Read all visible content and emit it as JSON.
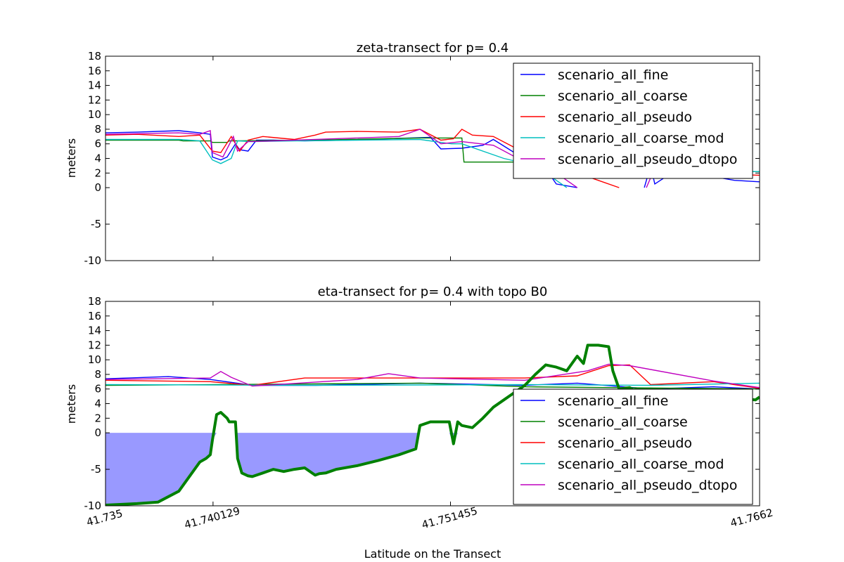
{
  "colors": {
    "scenario_all_fine": "#0000ff",
    "scenario_all_coarse": "#008000",
    "scenario_all_pseudo": "#ff0000",
    "scenario_all_coarse_mod": "#00bfbf",
    "scenario_all_pseudo_dtopo": "#bf00bf",
    "water_fill": "#9999ff",
    "topo": "#008000"
  },
  "chart_data": [
    {
      "type": "line",
      "title": "zeta-transect for p= 0.4",
      "ylabel": "meters",
      "xlim": [
        41.735,
        41.7662
      ],
      "ylim": [
        -10,
        18
      ],
      "yticks": [
        -10,
        -5,
        0,
        2,
        4,
        6,
        8,
        10,
        12,
        14,
        16,
        18
      ],
      "legend": "upper-right",
      "series": [
        {
          "name": "scenario_all_fine",
          "x": [
            41.735,
            41.7365,
            41.7385,
            41.7395,
            41.74,
            41.7401,
            41.7405,
            41.7408,
            41.7412,
            41.7414,
            41.7418,
            41.7422,
            41.743,
            41.7445,
            41.7465,
            41.7485,
            41.7505,
            41.751,
            41.752,
            41.753,
            41.7535,
            41.7545,
            41.7555,
            41.7561,
            41.7565,
            41.7575
          ],
          "y": [
            7.5,
            7.6,
            7.8,
            7.5,
            7.3,
            4.2,
            3.8,
            4.2,
            6.0,
            5.2,
            5.0,
            6.5,
            6.5,
            6.4,
            6.5,
            6.7,
            6.9,
            5.3,
            5.4,
            5.8,
            6.6,
            4.8,
            3.5,
            2.2,
            0.5,
            0.0
          ]
        },
        {
          "name": "scenario_all_fine",
          "x": [
            41.7607,
            41.761,
            41.7612,
            41.762,
            41.764,
            41.765,
            41.7662
          ],
          "y": [
            0.0,
            3.0,
            0.5,
            2.0,
            1.5,
            1.0,
            0.8
          ]
        },
        {
          "name": "scenario_all_coarse",
          "x": [
            41.735,
            41.7385,
            41.7387,
            41.74,
            41.7401,
            41.7408,
            41.7409,
            41.745,
            41.75,
            41.752,
            41.7521,
            41.7545,
            41.7546,
            41.7662
          ],
          "y": [
            6.5,
            6.5,
            6.4,
            6.4,
            6.2,
            6.2,
            6.4,
            6.5,
            6.8,
            6.8,
            3.5,
            3.5,
            2.2,
            2.2
          ]
        },
        {
          "name": "scenario_all_pseudo",
          "x": [
            41.735,
            41.7365,
            41.7385,
            41.7395,
            41.7401,
            41.7405,
            41.741,
            41.7414,
            41.7418,
            41.7425,
            41.744,
            41.745,
            41.7455,
            41.747,
            41.749,
            41.75,
            41.751,
            41.7516,
            41.752,
            41.7525,
            41.7535,
            41.7545,
            41.7555,
            41.757,
            41.7585,
            41.7595
          ],
          "y": [
            7.2,
            7.3,
            7.0,
            7.2,
            5.0,
            4.8,
            7.0,
            5.0,
            6.5,
            7.0,
            6.6,
            7.2,
            7.6,
            7.7,
            7.6,
            8.0,
            6.5,
            6.7,
            8.0,
            7.2,
            7.0,
            5.5,
            4.0,
            2.5,
            1.0,
            0.0
          ]
        },
        {
          "name": "scenario_all_pseudo",
          "x": [
            41.761,
            41.762,
            41.7635,
            41.765,
            41.7662
          ],
          "y": [
            2.2,
            2.0,
            1.8,
            1.8,
            1.7
          ]
        },
        {
          "name": "scenario_all_coarse_mod",
          "x": [
            41.735,
            41.7385,
            41.7395,
            41.7401,
            41.7405,
            41.741,
            41.7413,
            41.742,
            41.744,
            41.75,
            41.7515,
            41.752,
            41.754,
            41.7555,
            41.757
          ],
          "y": [
            6.6,
            6.6,
            6.4,
            3.8,
            3.3,
            4.0,
            6.4,
            6.3,
            6.4,
            6.6,
            6.0,
            6.0,
            4.0,
            3.0,
            0.0
          ]
        },
        {
          "name": "scenario_all_coarse_mod",
          "x": [
            41.761,
            41.7662
          ],
          "y": [
            2.2,
            2.2
          ]
        },
        {
          "name": "scenario_all_pseudo_dtopo",
          "x": [
            41.735,
            41.7385,
            41.7395,
            41.74,
            41.7401,
            41.7406,
            41.7411,
            41.7413,
            41.7418,
            41.743,
            41.749,
            41.75,
            41.751,
            41.752,
            41.7535,
            41.755,
            41.7565,
            41.7575
          ],
          "y": [
            7.3,
            7.5,
            7.3,
            7.8,
            4.8,
            4.2,
            7.0,
            5.0,
            6.3,
            6.4,
            7.0,
            8.0,
            6.0,
            6.3,
            5.8,
            3.5,
            2.0,
            0.0
          ]
        },
        {
          "name": "scenario_all_pseudo_dtopo",
          "x": [
            41.7608,
            41.7611
          ],
          "y": [
            0.0,
            2.0
          ]
        }
      ]
    },
    {
      "type": "line",
      "title": "eta-transect for p= 0.4 with topo B0",
      "xlabel": "Latitude on the Transect",
      "ylabel": "meters",
      "xlim": [
        41.735,
        41.7662
      ],
      "ylim": [
        -10,
        18
      ],
      "yticks": [
        -10,
        -5,
        0,
        2,
        4,
        6,
        8,
        10,
        12,
        14,
        16,
        18
      ],
      "xticks": [
        41.735,
        41.740129,
        41.751455,
        41.7662
      ],
      "xtick_labels": [
        "41.735",
        "41.740129",
        "41.751455",
        "41.7662"
      ],
      "legend": "lower-right",
      "series": [
        {
          "name": "scenario_all_fine",
          "x": [
            41.735,
            41.738,
            41.74,
            41.742,
            41.745,
            41.75,
            41.755,
            41.7575,
            41.761,
            41.764,
            41.7662
          ],
          "y": [
            7.4,
            7.7,
            7.3,
            6.5,
            6.5,
            6.8,
            6.5,
            6.8,
            6.0,
            6.3,
            6.0
          ]
        },
        {
          "name": "scenario_all_coarse",
          "x": [
            41.735,
            41.75,
            41.755,
            41.7662
          ],
          "y": [
            6.5,
            6.8,
            6.3,
            6.0
          ]
        },
        {
          "name": "scenario_all_pseudo",
          "x": [
            41.735,
            41.74,
            41.742,
            41.7445,
            41.75,
            41.755,
            41.7575,
            41.759,
            41.76,
            41.761,
            41.764,
            41.7662
          ],
          "y": [
            7.2,
            7.0,
            6.5,
            7.5,
            7.5,
            7.5,
            7.8,
            9.2,
            9.3,
            6.6,
            7.0,
            6.1
          ]
        },
        {
          "name": "scenario_all_coarse_mod",
          "x": [
            41.735,
            41.745,
            41.755,
            41.761,
            41.7662
          ],
          "y": [
            6.6,
            6.5,
            6.6,
            6.5,
            6.8
          ]
        },
        {
          "name": "scenario_all_pseudo_dtopo",
          "x": [
            41.735,
            41.74,
            41.7405,
            41.741,
            41.742,
            41.747,
            41.7485,
            41.75,
            41.755,
            41.758,
            41.759,
            41.76,
            41.764,
            41.7662
          ],
          "y": [
            7.3,
            7.5,
            8.4,
            7.6,
            6.4,
            7.3,
            8.1,
            7.5,
            7.2,
            8.5,
            9.4,
            9.2,
            7.1,
            6.2
          ]
        }
      ],
      "topo": {
        "name": "topo B0",
        "x": [
          41.735,
          41.7365,
          41.7375,
          41.7385,
          41.739,
          41.7395,
          41.7398,
          41.74,
          41.7401,
          41.7403,
          41.7405,
          41.7408,
          41.7409,
          41.7412,
          41.7413,
          41.7415,
          41.7418,
          41.742,
          41.7425,
          41.743,
          41.7435,
          41.744,
          41.7445,
          41.745,
          41.7452,
          41.7455,
          41.746,
          41.747,
          41.748,
          41.749,
          41.7495,
          41.7498,
          41.75,
          41.7505,
          41.751,
          41.7514,
          41.7516,
          41.7518,
          41.752,
          41.7525,
          41.753,
          41.7535,
          41.754,
          41.7545,
          41.755,
          41.7555,
          41.756,
          41.7565,
          41.757,
          41.7575,
          41.7578,
          41.758,
          41.7585,
          41.759,
          41.7592,
          41.7595,
          41.76,
          41.7602,
          41.7603,
          41.761,
          41.763,
          41.765,
          41.766,
          41.7662
        ],
        "y": [
          -9.9,
          -9.7,
          -9.5,
          -8.0,
          -6.0,
          -4.0,
          -3.5,
          -3.0,
          -1.0,
          2.5,
          2.8,
          2.0,
          1.5,
          1.5,
          -3.5,
          -5.5,
          -5.9,
          -6.0,
          -5.5,
          -5.0,
          -5.3,
          -5.0,
          -4.8,
          -5.8,
          -5.6,
          -5.5,
          -5.0,
          -4.5,
          -3.8,
          -3.0,
          -2.5,
          -2.2,
          1.0,
          1.5,
          1.5,
          1.5,
          -1.5,
          1.5,
          1.0,
          0.7,
          2.0,
          3.5,
          4.5,
          5.5,
          6.5,
          8.0,
          9.3,
          9.0,
          8.5,
          10.5,
          9.5,
          12.0,
          12.0,
          11.8,
          8.5,
          6.0,
          6.2,
          5.8,
          6.0,
          6.0,
          5.5,
          4.8,
          4.5,
          4.9
        ]
      }
    }
  ]
}
